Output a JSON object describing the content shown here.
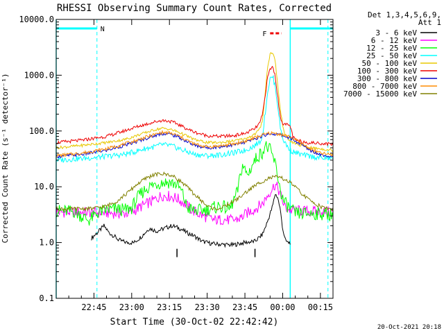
{
  "chart_data": {
    "type": "line",
    "title": "RHESSI Observing Summary Count Rates, Corrected",
    "xlabel": "Start Time (30-Oct-02 22:42:42)",
    "ylabel": "Corrected Count Rate (s⁻¹ detector⁻¹)",
    "x_unit": "minutes",
    "xlim": [
      -15,
      95
    ],
    "ylim": [
      0.1,
      10000
    ],
    "y_scale": "log",
    "x_ticks": [
      {
        "t": 0,
        "label": "22:45"
      },
      {
        "t": 15,
        "label": "23:00"
      },
      {
        "t": 30,
        "label": "23:15"
      },
      {
        "t": 45,
        "label": "23:30"
      },
      {
        "t": 60,
        "label": "23:45"
      },
      {
        "t": 75,
        "label": "00:00"
      },
      {
        "t": 90,
        "label": "00:15"
      }
    ],
    "y_ticks": [
      {
        "v": 0.1,
        "label": "0.1"
      },
      {
        "v": 1,
        "label": "1.0"
      },
      {
        "v": 10,
        "label": "10.0"
      },
      {
        "v": 100,
        "label": "100.0"
      },
      {
        "v": 1000,
        "label": "1000.0"
      },
      {
        "v": 10000,
        "label": "10000.0"
      }
    ],
    "legend_header": [
      "Det 1,3,4,5,6,9,",
      "Att 1"
    ],
    "legend_position": "right",
    "series": [
      {
        "name": "3 - 6 keV",
        "color": "#000000",
        "points": [
          [
            -1,
            1.2
          ],
          [
            2,
            1.6
          ],
          [
            4,
            2.0
          ],
          [
            6,
            1.5
          ],
          [
            8,
            1.3
          ],
          [
            10,
            1.1
          ],
          [
            13,
            1.0
          ],
          [
            16,
            1.0
          ],
          [
            19,
            1.3
          ],
          [
            22,
            1.8
          ],
          [
            25,
            1.6
          ],
          [
            28,
            1.8
          ],
          [
            31,
            2.0
          ],
          [
            34,
            1.8
          ],
          [
            37,
            1.5
          ],
          [
            40,
            1.3
          ],
          [
            43,
            1.05
          ],
          [
            47,
            0.95
          ],
          [
            55,
            0.9
          ],
          [
            60,
            1.0
          ],
          [
            64,
            1.05
          ],
          [
            67,
            1.4
          ],
          [
            69,
            2.4
          ],
          [
            71,
            4.5
          ],
          [
            72,
            7.5
          ],
          [
            73,
            6.5
          ],
          [
            74,
            4.0
          ],
          [
            75,
            1.8
          ],
          [
            76,
            1.1
          ],
          [
            77,
            1.0
          ],
          [
            78,
            1.0
          ]
        ]
      },
      {
        "name": "6 - 12 keV",
        "color": "#ff00ff",
        "points": [
          [
            -15,
            3.5
          ],
          [
            -5,
            3.5
          ],
          [
            5,
            3.4
          ],
          [
            12,
            3.3
          ],
          [
            15,
            3.5
          ],
          [
            19,
            4.5
          ],
          [
            23,
            5.5
          ],
          [
            27,
            7.0
          ],
          [
            30,
            6.8
          ],
          [
            33,
            6.2
          ],
          [
            36,
            5.0
          ],
          [
            39,
            3.8
          ],
          [
            42,
            3.2
          ],
          [
            45,
            2.8
          ],
          [
            48,
            2.5
          ],
          [
            51,
            2.6
          ],
          [
            55,
            2.5
          ],
          [
            58,
            2.7
          ],
          [
            61,
            3.4
          ],
          [
            64,
            4.0
          ],
          [
            67,
            5.0
          ],
          [
            69,
            7.0
          ],
          [
            71,
            9.5
          ],
          [
            72,
            11.0
          ],
          [
            73,
            9.5
          ],
          [
            74,
            7.5
          ],
          [
            75,
            5.5
          ],
          [
            76,
            4.2
          ],
          [
            78,
            3.8
          ],
          [
            82,
            3.7
          ],
          [
            86,
            3.6
          ],
          [
            90,
            3.6
          ],
          [
            95,
            3.5
          ]
        ]
      },
      {
        "name": "12 - 25 keV",
        "color": "#00ff00",
        "points": [
          [
            -15,
            3.7
          ],
          [
            -8,
            3.6
          ],
          [
            -2,
            2.5
          ],
          [
            2,
            3.5
          ],
          [
            5,
            3.8
          ],
          [
            9,
            4.0
          ],
          [
            12,
            3.8
          ],
          [
            15,
            4.2
          ],
          [
            18,
            7.0
          ],
          [
            21,
            9.5
          ],
          [
            24,
            11.0
          ],
          [
            27,
            12.0
          ],
          [
            30,
            12.0
          ],
          [
            33,
            11.0
          ],
          [
            35,
            8.0
          ],
          [
            37,
            4.2
          ],
          [
            40,
            3.7
          ],
          [
            43,
            3.8
          ],
          [
            46,
            4.0
          ],
          [
            50,
            4.5
          ],
          [
            54,
            4.0
          ],
          [
            57,
            8.0
          ],
          [
            59,
            25.0
          ],
          [
            61,
            16.0
          ],
          [
            63,
            25.0
          ],
          [
            65,
            35.0
          ],
          [
            67,
            42.0
          ],
          [
            68,
            55.0
          ],
          [
            70,
            45.0
          ],
          [
            71,
            35.0
          ],
          [
            72,
            26.0
          ],
          [
            73,
            16.0
          ],
          [
            74,
            9.0
          ],
          [
            75,
            6.0
          ],
          [
            76,
            5.0
          ],
          [
            78,
            4.0
          ],
          [
            80,
            3.3
          ],
          [
            85,
            3.3
          ],
          [
            90,
            3.3
          ],
          [
            95,
            3.2
          ]
        ]
      },
      {
        "name": "25 - 50 keV",
        "color": "#00ffff",
        "points": [
          [
            -15,
            30
          ],
          [
            -5,
            32
          ],
          [
            5,
            35
          ],
          [
            12,
            38
          ],
          [
            16,
            42
          ],
          [
            20,
            48
          ],
          [
            24,
            52
          ],
          [
            27,
            57
          ],
          [
            30,
            55
          ],
          [
            33,
            50
          ],
          [
            36,
            44
          ],
          [
            40,
            38
          ],
          [
            45,
            36
          ],
          [
            50,
            37
          ],
          [
            55,
            40
          ],
          [
            60,
            45
          ],
          [
            64,
            55
          ],
          [
            66,
            65
          ],
          [
            67,
            85
          ],
          [
            68,
            200
          ],
          [
            69,
            500
          ],
          [
            70,
            850
          ],
          [
            71,
            950
          ],
          [
            72,
            650
          ],
          [
            73,
            300
          ],
          [
            74,
            120
          ],
          [
            75,
            75
          ],
          [
            76,
            60
          ],
          [
            78,
            45
          ],
          [
            82,
            38
          ],
          [
            86,
            35
          ],
          [
            90,
            33
          ],
          [
            95,
            32
          ]
        ]
      },
      {
        "name": "50 - 100 keV",
        "color": "#e8c800",
        "points": [
          [
            -15,
            50
          ],
          [
            -5,
            55
          ],
          [
            5,
            62
          ],
          [
            12,
            70
          ],
          [
            16,
            80
          ],
          [
            20,
            92
          ],
          [
            24,
            105
          ],
          [
            27,
            112
          ],
          [
            30,
            108
          ],
          [
            33,
            98
          ],
          [
            36,
            85
          ],
          [
            40,
            70
          ],
          [
            45,
            62
          ],
          [
            50,
            62
          ],
          [
            55,
            66
          ],
          [
            60,
            72
          ],
          [
            64,
            88
          ],
          [
            66,
            110
          ],
          [
            67,
            160
          ],
          [
            68,
            450
          ],
          [
            69,
            1400
          ],
          [
            70,
            2400
          ],
          [
            71,
            2600
          ],
          [
            72,
            1800
          ],
          [
            73,
            700
          ],
          [
            74,
            250
          ],
          [
            75,
            130
          ],
          [
            76,
            85
          ],
          [
            78,
            65
          ],
          [
            82,
            55
          ],
          [
            86,
            50
          ],
          [
            90,
            48
          ],
          [
            95,
            45
          ]
        ]
      },
      {
        "name": "100 - 300 keV",
        "color": "#ee0000",
        "points": [
          [
            -15,
            62
          ],
          [
            -5,
            68
          ],
          [
            5,
            80
          ],
          [
            12,
            100
          ],
          [
            16,
            115
          ],
          [
            20,
            130
          ],
          [
            24,
            145
          ],
          [
            27,
            155
          ],
          [
            30,
            150
          ],
          [
            33,
            135
          ],
          [
            36,
            115
          ],
          [
            40,
            95
          ],
          [
            45,
            82
          ],
          [
            50,
            80
          ],
          [
            55,
            82
          ],
          [
            60,
            90
          ],
          [
            64,
            110
          ],
          [
            66,
            140
          ],
          [
            67,
            200
          ],
          [
            68,
            420
          ],
          [
            69,
            900
          ],
          [
            70,
            1300
          ],
          [
            71,
            1400
          ],
          [
            72,
            1000
          ],
          [
            73,
            420
          ],
          [
            74,
            180
          ],
          [
            75,
            140
          ],
          [
            76,
            130
          ],
          [
            78,
            125
          ],
          [
            79,
            80
          ],
          [
            80,
            68
          ],
          [
            85,
            62
          ],
          [
            90,
            60
          ],
          [
            95,
            58
          ]
        ]
      },
      {
        "name": "300 - 800 keV",
        "color": "#0000cc",
        "points": [
          [
            -15,
            35
          ],
          [
            -5,
            38
          ],
          [
            5,
            45
          ],
          [
            12,
            55
          ],
          [
            16,
            62
          ],
          [
            20,
            72
          ],
          [
            24,
            82
          ],
          [
            27,
            90
          ],
          [
            30,
            88
          ],
          [
            33,
            80
          ],
          [
            36,
            68
          ],
          [
            40,
            55
          ],
          [
            45,
            50
          ],
          [
            50,
            52
          ],
          [
            55,
            56
          ],
          [
            60,
            62
          ],
          [
            64,
            72
          ],
          [
            67,
            82
          ],
          [
            70,
            90
          ],
          [
            74,
            85
          ],
          [
            78,
            75
          ],
          [
            82,
            58
          ],
          [
            86,
            45
          ],
          [
            90,
            38
          ],
          [
            95,
            35
          ]
        ]
      },
      {
        "name": "800 - 7000 keV",
        "color": "#ff8c00",
        "points": [
          [
            -15,
            36
          ],
          [
            -5,
            40
          ],
          [
            5,
            48
          ],
          [
            12,
            58
          ],
          [
            16,
            66
          ],
          [
            20,
            76
          ],
          [
            24,
            86
          ],
          [
            27,
            94
          ],
          [
            30,
            92
          ],
          [
            33,
            84
          ],
          [
            36,
            72
          ],
          [
            40,
            58
          ],
          [
            45,
            52
          ],
          [
            50,
            54
          ],
          [
            55,
            58
          ],
          [
            60,
            65
          ],
          [
            64,
            76
          ],
          [
            67,
            85
          ],
          [
            70,
            92
          ],
          [
            74,
            88
          ],
          [
            78,
            78
          ],
          [
            82,
            62
          ],
          [
            86,
            48
          ],
          [
            90,
            40
          ],
          [
            95,
            37
          ]
        ]
      },
      {
        "name": "7000 - 15000 keV",
        "color": "#808000",
        "points": [
          [
            -15,
            4.0
          ],
          [
            -8,
            4.0
          ],
          [
            0,
            4.1
          ],
          [
            5,
            4.5
          ],
          [
            9,
            5.5
          ],
          [
            13,
            7.5
          ],
          [
            17,
            11.0
          ],
          [
            21,
            14.5
          ],
          [
            24,
            16.5
          ],
          [
            27,
            17.0
          ],
          [
            30,
            16.5
          ],
          [
            33,
            14.0
          ],
          [
            36,
            11.0
          ],
          [
            39,
            8.0
          ],
          [
            42,
            6.0
          ],
          [
            45,
            4.5
          ],
          [
            48,
            4.0
          ],
          [
            51,
            4.2
          ],
          [
            54,
            5.0
          ],
          [
            58,
            6.5
          ],
          [
            62,
            9.0
          ],
          [
            66,
            12.0
          ],
          [
            70,
            14.5
          ],
          [
            73,
            15.0
          ],
          [
            76,
            13.5
          ],
          [
            79,
            11.0
          ],
          [
            82,
            8.0
          ],
          [
            85,
            6.0
          ],
          [
            88,
            5.0
          ],
          [
            91,
            4.2
          ],
          [
            95,
            4.0
          ]
        ]
      }
    ],
    "annotations": {
      "night_bars": [
        [
          -15,
          1.2
        ],
        [
          78,
          95
        ]
      ],
      "night_label": "N",
      "flare_label": "F",
      "flare_span": [
        70,
        74.5
      ],
      "spacecraft_time_markers": [
        -15,
        1.2,
        78,
        93
      ],
      "ticks": [
        [
          33,
          0.65
        ],
        [
          64,
          0.65
        ]
      ]
    },
    "timestamp": "20-Oct-2021 20:18"
  }
}
